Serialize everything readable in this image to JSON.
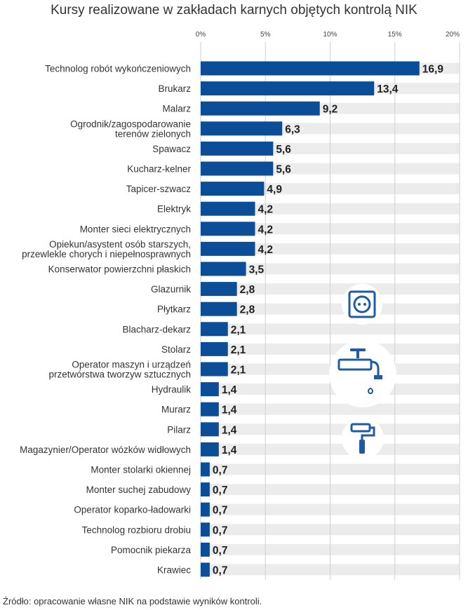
{
  "title": "Kursy realizowane w zakładach karnych objętych kontrolą NIK",
  "source": "Źródło: opracowanie własne NIK na podstawie wyników kontroli.",
  "colors": {
    "bar": "#0b4d96",
    "track": "#ececec",
    "grid": "#cfcfcf",
    "icon": "#1f5aa6"
  },
  "icons": [
    "socket-icon",
    "faucet-icon",
    "paint-roller-icon"
  ],
  "chart_data": {
    "type": "bar",
    "orientation": "horizontal",
    "title": "Kursy realizowane w zakładach karnych objętych kontrolą NIK",
    "x_ticks": [
      "0%",
      "5%",
      "10%",
      "15%",
      "20%"
    ],
    "xlim": [
      0,
      20
    ],
    "grid": true,
    "categories": [
      [
        "Technolog robót wykończeniowych"
      ],
      [
        "Brukarz"
      ],
      [
        "Malarz"
      ],
      [
        "Ogrodnik/zagospodarowanie",
        "terenów zielonych"
      ],
      [
        "Spawacz"
      ],
      [
        "Kucharz-kelner"
      ],
      [
        "Tapicer-szwacz"
      ],
      [
        "Elektryk"
      ],
      [
        "Monter sieci elektrycznych"
      ],
      [
        "Opiekun/asystent osób starszych,",
        "przewlekle chorych i niepełnosprawnych"
      ],
      [
        "Konserwator powierzchni płaskich"
      ],
      [
        "Glazurnik"
      ],
      [
        "Płytkarz"
      ],
      [
        "Blacharz-dekarz"
      ],
      [
        "Stolarz"
      ],
      [
        "Operator maszyn i urządzeń",
        "przetwórstwa tworzyw sztucznych"
      ],
      [
        "Hydraulik"
      ],
      [
        "Murarz"
      ],
      [
        "Pilarz"
      ],
      [
        "Magazynier/Operator wózków widłowych"
      ],
      [
        "Monter stolarki okiennej"
      ],
      [
        "Monter suchej zabudowy"
      ],
      [
        "Operator koparko-ładowarki"
      ],
      [
        "Technolog rozbioru drobiu"
      ],
      [
        "Pomocnik piekarza"
      ],
      [
        "Krawiec"
      ]
    ],
    "values": [
      16.9,
      13.4,
      9.2,
      6.3,
      5.6,
      5.6,
      4.9,
      4.2,
      4.2,
      4.2,
      3.5,
      2.8,
      2.8,
      2.1,
      2.1,
      2.1,
      1.4,
      1.4,
      1.4,
      1.4,
      0.7,
      0.7,
      0.7,
      0.7,
      0.7,
      0.7
    ],
    "value_labels": [
      "16,9",
      "13,4",
      "9,2",
      "6,3",
      "5,6",
      "5,6",
      "4,9",
      "4,2",
      "4,2",
      "4,2",
      "3,5",
      "2,8",
      "2,8",
      "2,1",
      "2,1",
      "2,1",
      "1,4",
      "1,4",
      "1,4",
      "1,4",
      "0,7",
      "0,7",
      "0,7",
      "0,7",
      "0,7",
      "0,7"
    ]
  }
}
